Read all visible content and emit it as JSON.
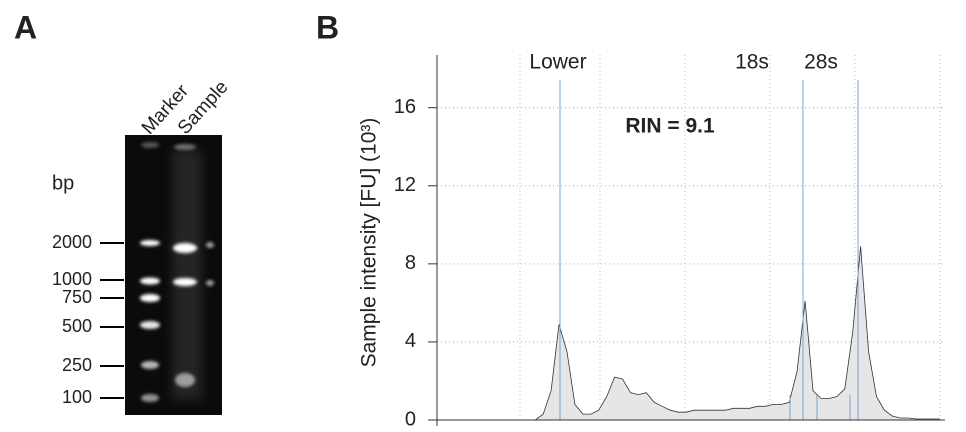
{
  "chart_data": [
    {
      "type": "gel",
      "panel_label": "A",
      "unit_label": "bp",
      "lanes": [
        "Marker",
        "Sample"
      ],
      "ladder": [
        2000,
        1000,
        750,
        500,
        250,
        100
      ]
    },
    {
      "type": "area",
      "panel_label": "B",
      "ylabel": "Sample intensity [FU] (10³)",
      "annotation": "RIN = 9.1",
      "peak_labels": [
        "Lower",
        "18s",
        "28s"
      ],
      "ylim": [
        0,
        18.7
      ],
      "yticks": [
        0,
        4,
        8,
        12,
        16
      ],
      "grid": true,
      "color": "#e6e6e6",
      "values": [
        0,
        0,
        0,
        0,
        0,
        0,
        0,
        0,
        0,
        0,
        0,
        0,
        0,
        0.3,
        1.5,
        4.9,
        3.5,
        0.8,
        0.3,
        0.3,
        0.5,
        1.2,
        2.2,
        2.1,
        1.4,
        1.3,
        1.4,
        0.9,
        0.7,
        0.5,
        0.4,
        0.4,
        0.5,
        0.5,
        0.5,
        0.5,
        0.5,
        0.6,
        0.6,
        0.6,
        0.7,
        0.7,
        0.8,
        0.8,
        0.9,
        2.5,
        6.1,
        1.5,
        1.1,
        1.1,
        1.2,
        1.6,
        4.5,
        8.9,
        3.5,
        1.2,
        0.5,
        0.2,
        0.1,
        0.1,
        0.05,
        0.05,
        0.05,
        0.05
      ]
    }
  ]
}
